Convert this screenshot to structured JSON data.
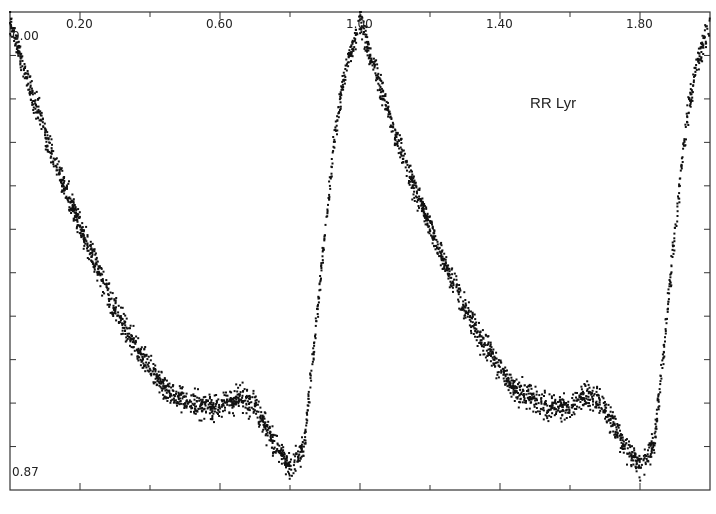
{
  "chart_data": {
    "type": "scatter",
    "title": "",
    "xlabel": "",
    "ylabel": "",
    "annotation": "RR Lyr",
    "x_tick_labels": [
      "0.20",
      "0.60",
      "1.00",
      "1.40",
      "1.80"
    ],
    "x_ticks": [
      0.2,
      0.6,
      1.0,
      1.4,
      1.8
    ],
    "x_minor_ticks": [
      0.0,
      0.4,
      0.8,
      1.2,
      1.6
    ],
    "xlim": [
      0.0,
      2.0
    ],
    "y_tick_labels": {
      "top": "0.00",
      "bottom": "0.87"
    },
    "ylim": [
      0.0,
      0.87
    ],
    "y_inverted": true,
    "y_tick_count": 11,
    "grid": false,
    "legend": "none",
    "marker_color": "#111111",
    "light_curve_template": [
      [
        0.0,
        0.02
      ],
      [
        0.05,
        0.12
      ],
      [
        0.1,
        0.22
      ],
      [
        0.15,
        0.31
      ],
      [
        0.2,
        0.39
      ],
      [
        0.25,
        0.47
      ],
      [
        0.3,
        0.54
      ],
      [
        0.35,
        0.6
      ],
      [
        0.4,
        0.65
      ],
      [
        0.45,
        0.69
      ],
      [
        0.5,
        0.71
      ],
      [
        0.55,
        0.72
      ],
      [
        0.6,
        0.72
      ],
      [
        0.65,
        0.7
      ],
      [
        0.7,
        0.72
      ],
      [
        0.75,
        0.78
      ],
      [
        0.8,
        0.83
      ],
      [
        0.84,
        0.79
      ],
      [
        0.87,
        0.6
      ],
      [
        0.9,
        0.4
      ],
      [
        0.93,
        0.21
      ],
      [
        0.96,
        0.1
      ],
      [
        0.99,
        0.04
      ],
      [
        1.0,
        0.02
      ]
    ]
  }
}
